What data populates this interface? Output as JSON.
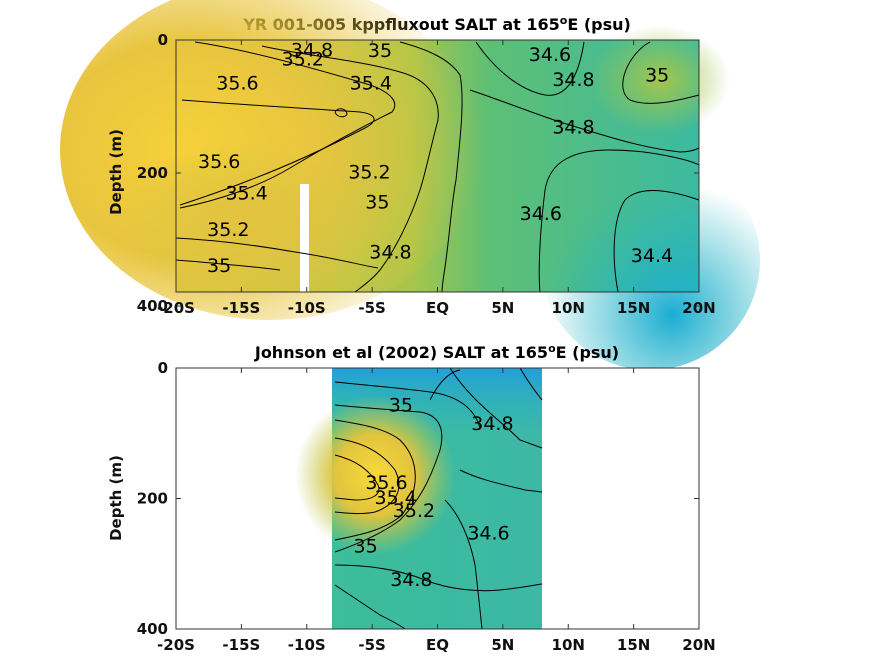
{
  "chart_data": [
    {
      "type": "contour",
      "title": "YR 001-005 kppfluxout SALT at 165",
      "title_sup": "o",
      "title_suffix": "E (psu)",
      "ylabel": "Depth (m)",
      "x_ticks": [
        "-20S",
        "-15S",
        "-10S",
        "-5S",
        "EQ",
        "5N",
        "10N",
        "15N",
        "20N"
      ],
      "x_values": [
        -20,
        -15,
        -10,
        -5,
        0,
        5,
        10,
        15,
        20
      ],
      "xlim": [
        -20,
        20
      ],
      "y_ticks": [
        "0",
        "200",
        "400"
      ],
      "y_values": [
        0,
        200,
        400
      ],
      "ylim": [
        0,
        400
      ],
      "y_reversed": true,
      "data_depth_max": 385,
      "contour_labels": [
        {
          "text": "34.8",
          "x": -9.6,
          "y": 14
        },
        {
          "text": "35",
          "x": -4.4,
          "y": 15
        },
        {
          "text": "35.2",
          "x": -10.3,
          "y": 28
        },
        {
          "text": "35.6",
          "x": -15.3,
          "y": 64
        },
        {
          "text": "35.4",
          "x": -5.1,
          "y": 64
        },
        {
          "text": "34.6",
          "x": 8.6,
          "y": 21
        },
        {
          "text": "34.8",
          "x": 10.4,
          "y": 59
        },
        {
          "text": "35",
          "x": 16.8,
          "y": 52
        },
        {
          "text": "34.8",
          "x": 10.4,
          "y": 130
        },
        {
          "text": "35.6",
          "x": -16.7,
          "y": 182
        },
        {
          "text": "35.2",
          "x": -5.2,
          "y": 198
        },
        {
          "text": "35.4",
          "x": -14.6,
          "y": 229
        },
        {
          "text": "35",
          "x": -4.6,
          "y": 243
        },
        {
          "text": "35.2",
          "x": -16.0,
          "y": 284
        },
        {
          "text": "34.6",
          "x": 7.9,
          "y": 260
        },
        {
          "text": "34.8",
          "x": -3.6,
          "y": 318
        },
        {
          "text": "35",
          "x": -16.7,
          "y": 338
        },
        {
          "text": "34.4",
          "x": 16.4,
          "y": 323
        }
      ]
    },
    {
      "type": "contour",
      "title": "Johnson et al (2002) SALT at 165",
      "title_sup": "o",
      "title_suffix": "E (psu)",
      "ylabel": "Depth (m)",
      "x_ticks": [
        "-20S",
        "-15S",
        "-10S",
        "-5S",
        "EQ",
        "5N",
        "10N",
        "15N",
        "20N"
      ],
      "x_values": [
        -20,
        -15,
        -10,
        -5,
        0,
        5,
        10,
        15,
        20
      ],
      "xlim": [
        -20,
        20
      ],
      "y_ticks": [
        "0",
        "200",
        "400"
      ],
      "y_values": [
        0,
        200,
        400
      ],
      "ylim": [
        0,
        400
      ],
      "y_reversed": true,
      "data_x_range": [
        -8,
        8
      ],
      "contour_labels": [
        {
          "text": "35",
          "x": -2.8,
          "y": 56
        },
        {
          "text": "34.8",
          "x": 4.2,
          "y": 84
        },
        {
          "text": "35.6",
          "x": -3.9,
          "y": 175
        },
        {
          "text": "35.4",
          "x": -3.2,
          "y": 198
        },
        {
          "text": "35.2",
          "x": -1.8,
          "y": 218
        },
        {
          "text": "34.6",
          "x": 3.9,
          "y": 252
        },
        {
          "text": "35",
          "x": -5.5,
          "y": 272
        },
        {
          "text": "34.8",
          "x": -2.0,
          "y": 323
        }
      ]
    }
  ]
}
